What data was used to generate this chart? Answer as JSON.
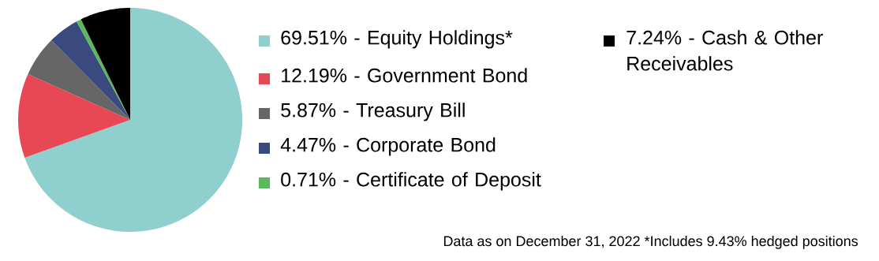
{
  "chart_data": {
    "type": "pie",
    "categories": [
      "69.51%  - Equity Holdings*",
      "12.19% - Government Bond",
      "5.87% - Treasury Bill",
      "4.47% - Corporate Bond",
      "0.71% - Certificate of Deposit",
      "7.24% - Cash & Other Receivables"
    ],
    "values": [
      69.51,
      12.19,
      5.87,
      4.47,
      0.71,
      7.24
    ],
    "colors": [
      "#8fcfcd",
      "#e84855",
      "#666666",
      "#3b4a7e",
      "#5cb85c",
      "#000000"
    ],
    "legend": "right",
    "annotations": [
      "Data as on December 31, 2022 *Includes 9.43% hedged positions"
    ]
  }
}
